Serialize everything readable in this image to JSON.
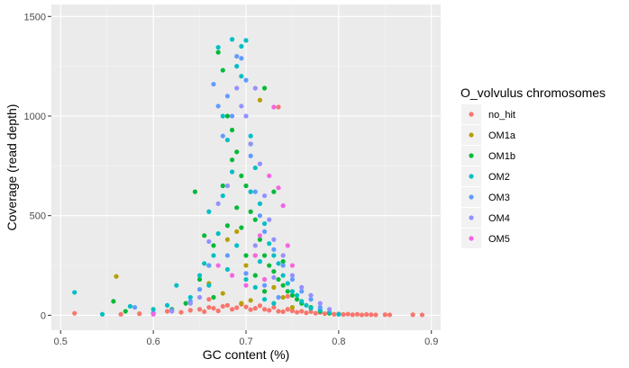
{
  "chart_data": {
    "type": "scatter",
    "xlabel": "GC content (%)",
    "ylabel": "Coverage (read depth)",
    "xlim": [
      0.49,
      0.91
    ],
    "ylim": [
      -75,
      1560
    ],
    "x_ticks": [
      0.5,
      0.6,
      0.7,
      0.8,
      0.9
    ],
    "x_tick_labels": [
      "0.5",
      "0.6",
      "0.7",
      "0.8",
      "0.9"
    ],
    "y_ticks": [
      0,
      500,
      1000,
      1500
    ],
    "y_tick_labels": [
      "0",
      "500",
      "1000",
      "1500"
    ],
    "grid": true,
    "legend": {
      "title": "O_volvulus chromosomes",
      "position": "right"
    },
    "series": [
      {
        "name": "no_hit",
        "color": "#F8766D",
        "points": [
          [
            0.515,
            10
          ],
          [
            0.565,
            5
          ],
          [
            0.585,
            8
          ],
          [
            0.6,
            12
          ],
          [
            0.615,
            20
          ],
          [
            0.63,
            15
          ],
          [
            0.64,
            25
          ],
          [
            0.65,
            30
          ],
          [
            0.655,
            18
          ],
          [
            0.66,
            40
          ],
          [
            0.665,
            35
          ],
          [
            0.67,
            22
          ],
          [
            0.675,
            45
          ],
          [
            0.68,
            50
          ],
          [
            0.685,
            30
          ],
          [
            0.69,
            38
          ],
          [
            0.695,
            55
          ],
          [
            0.7,
            42
          ],
          [
            0.705,
            28
          ],
          [
            0.71,
            35
          ],
          [
            0.715,
            48
          ],
          [
            0.72,
            30
          ],
          [
            0.725,
            25
          ],
          [
            0.73,
            40
          ],
          [
            0.735,
            20
          ],
          [
            0.74,
            18
          ],
          [
            0.745,
            30
          ],
          [
            0.75,
            22
          ],
          [
            0.755,
            15
          ],
          [
            0.76,
            20
          ],
          [
            0.765,
            12
          ],
          [
            0.77,
            18
          ],
          [
            0.775,
            10
          ],
          [
            0.78,
            14
          ],
          [
            0.785,
            8
          ],
          [
            0.79,
            10
          ],
          [
            0.795,
            5
          ],
          [
            0.8,
            7
          ],
          [
            0.805,
            4
          ],
          [
            0.81,
            6
          ],
          [
            0.815,
            3
          ],
          [
            0.82,
            5
          ],
          [
            0.825,
            2
          ],
          [
            0.83,
            4
          ],
          [
            0.835,
            3
          ],
          [
            0.84,
            2
          ],
          [
            0.85,
            3
          ],
          [
            0.855,
            2
          ],
          [
            0.88,
            3
          ],
          [
            0.89,
            2
          ],
          [
            0.72,
            120
          ],
          [
            0.735,
            1045
          ],
          [
            0.7,
            210
          ],
          [
            0.66,
            80
          ],
          [
            0.745,
            95
          ]
        ]
      },
      {
        "name": "OM1a",
        "color": "#B79F00",
        "points": [
          [
            0.56,
            195
          ],
          [
            0.66,
            160
          ],
          [
            0.68,
            380
          ],
          [
            0.69,
            420
          ],
          [
            0.7,
            250
          ],
          [
            0.71,
            300
          ],
          [
            0.72,
            180
          ],
          [
            0.73,
            140
          ],
          [
            0.74,
            90
          ],
          [
            0.695,
            60
          ],
          [
            0.675,
            110
          ],
          [
            0.705,
            75
          ],
          [
            0.75,
            40
          ],
          [
            0.715,
            1080
          ]
        ]
      },
      {
        "name": "OM1b",
        "color": "#00BA38",
        "points": [
          [
            0.557,
            70
          ],
          [
            0.57,
            20
          ],
          [
            0.62,
            30
          ],
          [
            0.635,
            60
          ],
          [
            0.645,
            620
          ],
          [
            0.65,
            180
          ],
          [
            0.655,
            400
          ],
          [
            0.66,
            250
          ],
          [
            0.665,
            350
          ],
          [
            0.67,
            1320
          ],
          [
            0.675,
            1230
          ],
          [
            0.68,
            1000
          ],
          [
            0.685,
            930
          ],
          [
            0.69,
            820
          ],
          [
            0.695,
            700
          ],
          [
            0.7,
            650
          ],
          [
            0.705,
            520
          ],
          [
            0.71,
            480
          ],
          [
            0.715,
            380
          ],
          [
            0.72,
            300
          ],
          [
            0.725,
            250
          ],
          [
            0.73,
            220
          ],
          [
            0.735,
            180
          ],
          [
            0.74,
            150
          ],
          [
            0.745,
            120
          ],
          [
            0.75,
            100
          ],
          [
            0.755,
            80
          ],
          [
            0.76,
            60
          ],
          [
            0.77,
            40
          ],
          [
            0.78,
            20
          ],
          [
            0.79,
            10
          ],
          [
            0.68,
            450
          ],
          [
            0.69,
            540
          ],
          [
            0.7,
            300
          ],
          [
            0.71,
            200
          ],
          [
            0.72,
            120
          ],
          [
            0.665,
            90
          ],
          [
            0.675,
            650
          ],
          [
            0.685,
            780
          ],
          [
            0.695,
            440
          ],
          [
            0.705,
            860
          ],
          [
            0.72,
            1140
          ],
          [
            0.73,
            620
          ],
          [
            0.74,
            270
          ]
        ]
      },
      {
        "name": "OM2",
        "color": "#00BFC4",
        "points": [
          [
            0.515,
            115
          ],
          [
            0.545,
            5
          ],
          [
            0.575,
            45
          ],
          [
            0.6,
            30
          ],
          [
            0.615,
            50
          ],
          [
            0.625,
            150
          ],
          [
            0.64,
            90
          ],
          [
            0.65,
            200
          ],
          [
            0.655,
            260
          ],
          [
            0.66,
            520
          ],
          [
            0.665,
            300
          ],
          [
            0.67,
            1345
          ],
          [
            0.675,
            1000
          ],
          [
            0.68,
            880
          ],
          [
            0.685,
            1385
          ],
          [
            0.69,
            1250
          ],
          [
            0.695,
            1350
          ],
          [
            0.7,
            1380
          ],
          [
            0.705,
            900
          ],
          [
            0.71,
            740
          ],
          [
            0.715,
            560
          ],
          [
            0.72,
            460
          ],
          [
            0.725,
            360
          ],
          [
            0.73,
            300
          ],
          [
            0.735,
            260
          ],
          [
            0.74,
            200
          ],
          [
            0.745,
            160
          ],
          [
            0.75,
            120
          ],
          [
            0.755,
            100
          ],
          [
            0.76,
            70
          ],
          [
            0.765,
            50
          ],
          [
            0.77,
            35
          ],
          [
            0.78,
            25
          ],
          [
            0.79,
            15
          ],
          [
            0.8,
            5
          ],
          [
            0.68,
            230
          ],
          [
            0.69,
            350
          ],
          [
            0.7,
            180
          ],
          [
            0.71,
            140
          ],
          [
            0.72,
            80
          ],
          [
            0.73,
            60
          ],
          [
            0.66,
            150
          ],
          [
            0.67,
            410
          ],
          [
            0.675,
            600
          ],
          [
            0.685,
            720
          ],
          [
            0.695,
            1200
          ],
          [
            0.705,
            620
          ],
          [
            0.715,
            270
          ]
        ]
      },
      {
        "name": "OM3",
        "color": "#619CFF",
        "points": [
          [
            0.58,
            40
          ],
          [
            0.6,
            10
          ],
          [
            0.62,
            25
          ],
          [
            0.64,
            70
          ],
          [
            0.65,
            130
          ],
          [
            0.66,
            250
          ],
          [
            0.665,
            1160
          ],
          [
            0.67,
            1050
          ],
          [
            0.675,
            900
          ],
          [
            0.68,
            1100
          ],
          [
            0.685,
            1000
          ],
          [
            0.69,
            1300
          ],
          [
            0.695,
            1290
          ],
          [
            0.7,
            1180
          ],
          [
            0.705,
            800
          ],
          [
            0.71,
            620
          ],
          [
            0.715,
            500
          ],
          [
            0.72,
            420
          ],
          [
            0.73,
            330
          ],
          [
            0.74,
            250
          ],
          [
            0.75,
            180
          ],
          [
            0.76,
            120
          ],
          [
            0.77,
            80
          ],
          [
            0.78,
            40
          ],
          [
            0.68,
            300
          ],
          [
            0.7,
            210
          ],
          [
            0.72,
            150
          ],
          [
            0.735,
            90
          ]
        ]
      },
      {
        "name": "OM4",
        "color": "#9590FF",
        "points": [
          [
            0.62,
            20
          ],
          [
            0.64,
            60
          ],
          [
            0.65,
            90
          ],
          [
            0.66,
            370
          ],
          [
            0.67,
            560
          ],
          [
            0.68,
            650
          ],
          [
            0.69,
            1140
          ],
          [
            0.695,
            1050
          ],
          [
            0.7,
            1000
          ],
          [
            0.705,
            860
          ],
          [
            0.71,
            1140
          ],
          [
            0.715,
            760
          ],
          [
            0.72,
            600
          ],
          [
            0.725,
            480
          ],
          [
            0.73,
            380
          ],
          [
            0.74,
            300
          ],
          [
            0.75,
            200
          ],
          [
            0.76,
            140
          ],
          [
            0.77,
            100
          ],
          [
            0.78,
            60
          ],
          [
            0.79,
            30
          ],
          [
            0.71,
            350
          ],
          [
            0.73,
            190
          ]
        ]
      },
      {
        "name": "OM5",
        "color": "#F564E3",
        "points": [
          [
            0.6,
            5
          ],
          [
            0.67,
            250
          ],
          [
            0.685,
            200
          ],
          [
            0.7,
            150
          ],
          [
            0.715,
            400
          ],
          [
            0.725,
            700
          ],
          [
            0.73,
            1045
          ],
          [
            0.74,
            550
          ],
          [
            0.745,
            350
          ],
          [
            0.75,
            250
          ],
          [
            0.71,
            300
          ],
          [
            0.72,
            180
          ],
          [
            0.735,
            640
          ]
        ]
      }
    ]
  }
}
